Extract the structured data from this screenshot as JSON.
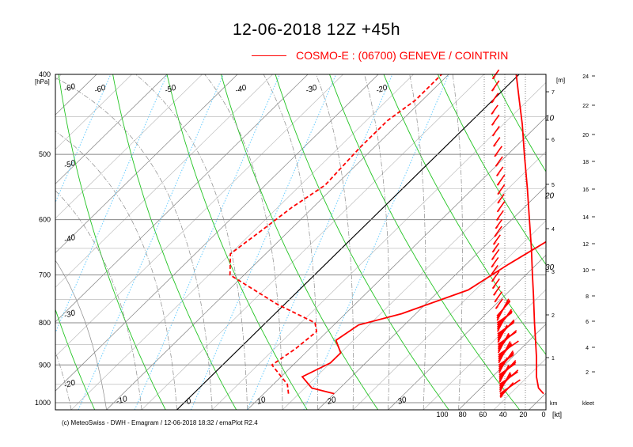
{
  "title": "12-06-2018  12Z +45h",
  "legend": {
    "label": "COSMO-E : (06700)  GENEVE / COINTRIN",
    "color": "#ff0000"
  },
  "footer": "(c) MeteoSwiss - DWH - Emagram / 12-06-2018  18:32 / emaPlot R2.4",
  "chart_data": {
    "type": "line",
    "subtype": "emagram",
    "y_scale": "log",
    "pressure_unit": "[hPa]",
    "ylim": [
      1020,
      400
    ],
    "pressure_ticks": [
      400,
      500,
      600,
      700,
      800,
      900,
      1000
    ],
    "temperature_label_rows": [
      {
        "p": 405,
        "values": [
          -60,
          -50,
          -40,
          -30,
          -20
        ]
      },
      {
        "p": 1000,
        "values": [
          -10,
          0,
          10,
          20,
          30
        ]
      }
    ],
    "left_temperature_labels": [
      {
        "p": 420,
        "value": -60
      },
      {
        "p": 520,
        "value": -50
      },
      {
        "p": 640,
        "value": -40
      },
      {
        "p": 790,
        "value": -30
      },
      {
        "p": 960,
        "value": -20
      }
    ],
    "saturation_mixing_ratio_labels": [
      {
        "label": "10",
        "p": 455
      },
      {
        "label": "20",
        "p": 565
      },
      {
        "label": "30",
        "p": 690
      }
    ],
    "height_axis": {
      "unit": "[m]",
      "km_label": "km",
      "ticks": [
        1,
        2,
        3,
        4,
        5,
        6,
        7
      ]
    },
    "kleet_axis": {
      "label": "kleet",
      "ticks": [
        2,
        4,
        6,
        8,
        10,
        12,
        14,
        16,
        18,
        20,
        22,
        24
      ]
    },
    "wind_speed_axis": {
      "unit": "[kt]",
      "ticks": [
        100,
        80,
        60,
        40,
        20,
        0
      ]
    },
    "colors": {
      "isotherm": "#a9a9a9",
      "dry_adiabat": "#22c422",
      "moist_adiabat": "#8a8a8a",
      "mixing_ratio": "#66ccff",
      "profile": "#ff0000",
      "grid": "#888888"
    },
    "series": [
      {
        "role": "temperature",
        "style": "solid",
        "points": [
          [
            975,
            20.0
          ],
          [
            960,
            16.0
          ],
          [
            930,
            13.0
          ],
          [
            895,
            15.0
          ],
          [
            870,
            15.0
          ],
          [
            840,
            12.5
          ],
          [
            805,
            13.5
          ],
          [
            780,
            18.0
          ],
          [
            730,
            24.0
          ],
          [
            680,
            26.0
          ],
          [
            630,
            28.5
          ],
          [
            570,
            29.5
          ],
          [
            520,
            30.0
          ],
          [
            460,
            32.0
          ],
          [
            430,
            35.0
          ],
          [
            400,
            36.0
          ]
        ]
      },
      {
        "role": "dewpoint",
        "style": "dashed",
        "points": [
          [
            975,
            13.5
          ],
          [
            950,
            12.0
          ],
          [
            900,
            7.0
          ],
          [
            860,
            8.0
          ],
          [
            820,
            8.5
          ],
          [
            800,
            7.0
          ],
          [
            760,
            -1.0
          ],
          [
            700,
            -12.0
          ],
          [
            660,
            -15.0
          ],
          [
            620,
            -14.0
          ],
          [
            580,
            -13.0
          ],
          [
            545,
            -11.5
          ],
          [
            490,
            -12.0
          ],
          [
            455,
            -12.0
          ],
          [
            430,
            -11.0
          ],
          [
            400,
            -11.0
          ]
        ]
      },
      {
        "role": "wind_speed",
        "style": "solid",
        "points": [
          [
            975,
            0.0
          ],
          [
            960,
            5.0
          ],
          [
            930,
            7.0
          ],
          [
            880,
            7.0
          ],
          [
            840,
            8.0
          ],
          [
            800,
            9.0
          ],
          [
            740,
            10.0
          ],
          [
            700,
            11.0
          ],
          [
            650,
            12.0
          ],
          [
            600,
            14.0
          ],
          [
            550,
            16.0
          ],
          [
            500,
            19.0
          ],
          [
            460,
            21.0
          ],
          [
            430,
            24.0
          ],
          [
            400,
            27.0
          ]
        ]
      }
    ]
  }
}
